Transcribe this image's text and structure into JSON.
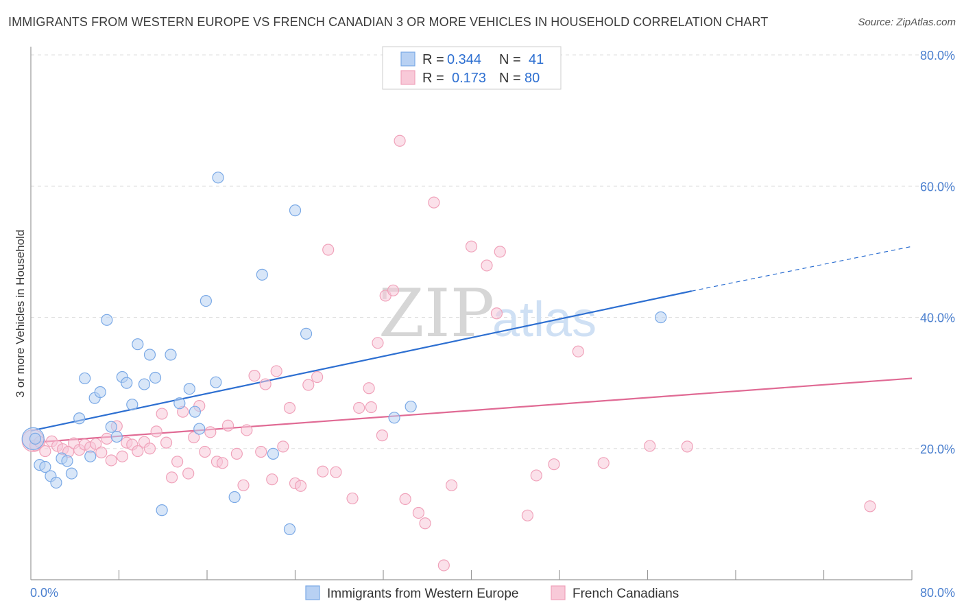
{
  "header": {
    "title": "IMMIGRANTS FROM WESTERN EUROPE VS FRENCH CANADIAN 3 OR MORE VEHICLES IN HOUSEHOLD CORRELATION CHART",
    "source": "Source: ZipAtlas.com"
  },
  "watermark": {
    "zip": "ZIP",
    "atlas": "atlas"
  },
  "legend": {
    "rows": [
      {
        "r_label": "R =",
        "r_value": "0.344",
        "n_label": "N =",
        "n_value": "41"
      },
      {
        "r_label": "R =",
        "r_value": "0.173",
        "n_label": "N =",
        "n_value": "80"
      }
    ]
  },
  "chart_data": {
    "type": "scatter",
    "title": "IMMIGRANTS FROM WESTERN EUROPE VS FRENCH CANADIAN 3 OR MORE VEHICLES IN HOUSEHOLD CORRELATION CHART",
    "xlabel": "",
    "ylabel": "3 or more Vehicles in Household",
    "xlim": [
      0,
      80
    ],
    "ylim": [
      0,
      80
    ],
    "x_tick_labels": [
      "0.0%",
      "80.0%"
    ],
    "y_tick_labels": [
      "20.0%",
      "40.0%",
      "60.0%",
      "80.0%"
    ],
    "y_tick_values": [
      20,
      40,
      60,
      80
    ],
    "x_minor_ticks": [
      8,
      16,
      24,
      32,
      40,
      48,
      56,
      64,
      72,
      80
    ],
    "grid": true,
    "series": [
      {
        "name": "Immigrants from Western Europe",
        "color": "#7aa9e6",
        "fill": "#b8d1f3",
        "line_color": "#2d6fd1",
        "trend": {
          "x0": 0,
          "y0": 22.7,
          "x1": 60,
          "y1": 44.0,
          "dash_to_x": 80,
          "dash_to_y": 50.8
        },
        "points": [
          [
            0.4,
            21.5
          ],
          [
            0.8,
            17.5
          ],
          [
            1.3,
            17.2
          ],
          [
            1.8,
            15.8
          ],
          [
            2.3,
            14.8
          ],
          [
            2.8,
            18.5
          ],
          [
            3.3,
            18.1
          ],
          [
            3.7,
            16.2
          ],
          [
            4.4,
            24.6
          ],
          [
            4.9,
            30.7
          ],
          [
            5.4,
            18.8
          ],
          [
            5.8,
            27.7
          ],
          [
            6.3,
            28.6
          ],
          [
            6.9,
            39.6
          ],
          [
            7.3,
            23.3
          ],
          [
            7.8,
            21.8
          ],
          [
            8.3,
            30.9
          ],
          [
            8.7,
            30.0
          ],
          [
            9.2,
            26.7
          ],
          [
            9.7,
            35.9
          ],
          [
            10.3,
            29.8
          ],
          [
            10.8,
            34.3
          ],
          [
            11.3,
            30.8
          ],
          [
            11.9,
            10.6
          ],
          [
            12.7,
            34.3
          ],
          [
            13.5,
            26.9
          ],
          [
            14.4,
            29.1
          ],
          [
            14.9,
            25.6
          ],
          [
            15.3,
            23.0
          ],
          [
            15.9,
            42.5
          ],
          [
            16.8,
            30.1
          ],
          [
            17.0,
            61.3
          ],
          [
            18.5,
            12.6
          ],
          [
            21.0,
            46.5
          ],
          [
            22.0,
            19.2
          ],
          [
            23.5,
            7.7
          ],
          [
            24.0,
            56.3
          ],
          [
            25.0,
            37.5
          ],
          [
            33.0,
            24.7
          ],
          [
            34.5,
            26.4
          ],
          [
            57.2,
            40.0
          ]
        ],
        "large_point": [
          0.2,
          21.5
        ]
      },
      {
        "name": "French Canadians",
        "color": "#f0a2ba",
        "fill": "#f8c9d8",
        "line_color": "#e06a94",
        "trend": {
          "x0": 0,
          "y0": 20.9,
          "x1": 80,
          "y1": 30.7
        },
        "points": [
          [
            0.4,
            20.5
          ],
          [
            0.8,
            21.0
          ],
          [
            1.3,
            19.6
          ],
          [
            1.9,
            21.1
          ],
          [
            2.4,
            20.4
          ],
          [
            2.9,
            19.9
          ],
          [
            3.4,
            19.5
          ],
          [
            3.9,
            20.8
          ],
          [
            4.4,
            19.8
          ],
          [
            4.9,
            20.6
          ],
          [
            5.4,
            20.2
          ],
          [
            5.9,
            20.7
          ],
          [
            6.4,
            19.4
          ],
          [
            6.9,
            21.5
          ],
          [
            7.3,
            18.2
          ],
          [
            7.8,
            23.4
          ],
          [
            8.3,
            18.8
          ],
          [
            8.7,
            20.9
          ],
          [
            9.2,
            20.6
          ],
          [
            9.7,
            19.6
          ],
          [
            10.3,
            21.0
          ],
          [
            10.8,
            20.0
          ],
          [
            11.4,
            22.6
          ],
          [
            11.9,
            25.3
          ],
          [
            12.3,
            20.9
          ],
          [
            12.8,
            15.6
          ],
          [
            13.3,
            18.0
          ],
          [
            13.8,
            25.6
          ],
          [
            14.3,
            16.2
          ],
          [
            14.8,
            21.7
          ],
          [
            15.3,
            26.5
          ],
          [
            15.8,
            19.5
          ],
          [
            16.3,
            22.5
          ],
          [
            16.9,
            18.0
          ],
          [
            17.4,
            17.8
          ],
          [
            17.9,
            23.5
          ],
          [
            18.7,
            19.2
          ],
          [
            19.3,
            14.4
          ],
          [
            19.6,
            22.8
          ],
          [
            20.3,
            31.1
          ],
          [
            20.9,
            19.5
          ],
          [
            21.3,
            29.8
          ],
          [
            21.9,
            15.3
          ],
          [
            22.3,
            31.8
          ],
          [
            22.9,
            20.3
          ],
          [
            23.5,
            26.2
          ],
          [
            24.0,
            14.7
          ],
          [
            24.5,
            14.3
          ],
          [
            25.2,
            29.7
          ],
          [
            26.0,
            30.9
          ],
          [
            26.5,
            16.5
          ],
          [
            27.0,
            50.3
          ],
          [
            27.7,
            16.4
          ],
          [
            29.2,
            12.4
          ],
          [
            29.8,
            26.2
          ],
          [
            30.7,
            29.2
          ],
          [
            30.9,
            26.3
          ],
          [
            31.5,
            36.1
          ],
          [
            31.9,
            22.0
          ],
          [
            32.2,
            43.3
          ],
          [
            32.9,
            44.1
          ],
          [
            33.5,
            66.9
          ],
          [
            34.0,
            12.3
          ],
          [
            35.2,
            10.2
          ],
          [
            35.8,
            8.6
          ],
          [
            37.5,
            2.2
          ],
          [
            36.6,
            57.5
          ],
          [
            38.2,
            14.4
          ],
          [
            40.0,
            50.8
          ],
          [
            41.4,
            47.9
          ],
          [
            42.3,
            40.6
          ],
          [
            42.6,
            50.0
          ],
          [
            45.1,
            9.8
          ],
          [
            45.9,
            15.9
          ],
          [
            47.5,
            17.6
          ],
          [
            49.7,
            34.8
          ],
          [
            52.0,
            17.8
          ],
          [
            56.2,
            20.4
          ],
          [
            59.6,
            20.3
          ],
          [
            76.2,
            11.2
          ]
        ],
        "large_point": [
          0.2,
          21.2
        ]
      }
    ]
  },
  "bottom_legend": {
    "items": [
      {
        "label": "Immigrants from Western Europe"
      },
      {
        "label": "French Canadians"
      }
    ]
  }
}
